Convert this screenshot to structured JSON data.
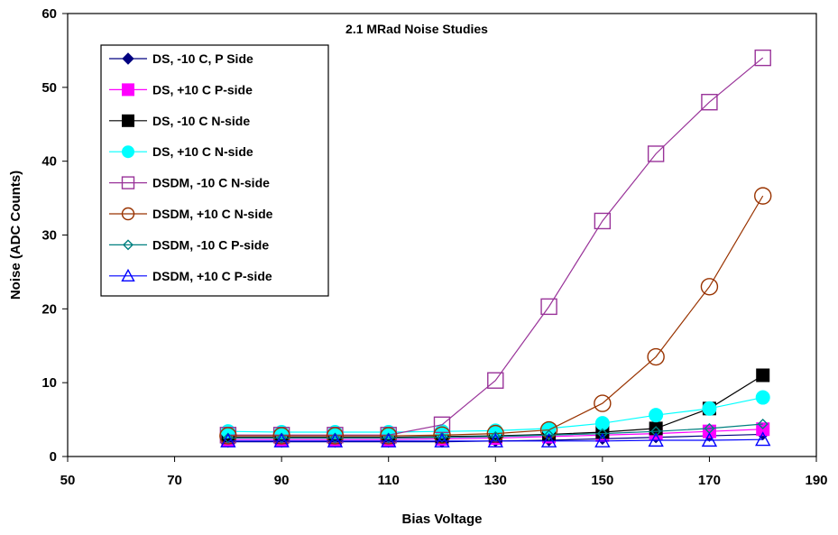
{
  "chart_data": {
    "type": "line",
    "title": "2.1 MRad Noise Studies",
    "xlabel": "Bias Voltage",
    "ylabel": "Noise (ADC Counts)",
    "xlim": [
      50,
      190
    ],
    "ylim": [
      0,
      60
    ],
    "xticks": [
      50,
      70,
      90,
      110,
      130,
      150,
      170,
      190
    ],
    "yticks": [
      0,
      10,
      20,
      30,
      40,
      50,
      60
    ],
    "grid": false,
    "legend_position": "top-left",
    "x": [
      80,
      90,
      100,
      110,
      120,
      130,
      140,
      150,
      160,
      170,
      180
    ],
    "series": [
      {
        "name": "DS, -10 C, P Side",
        "color": "#000080",
        "marker": "diamond-filled",
        "values": [
          2.0,
          2.0,
          2.0,
          2.0,
          2.0,
          2.1,
          2.2,
          2.4,
          2.6,
          2.8,
          3.0
        ]
      },
      {
        "name": "DS, +10 C P-side",
        "color": "#ff00ff",
        "marker": "square-filled",
        "values": [
          2.3,
          2.3,
          2.3,
          2.3,
          2.4,
          2.5,
          2.7,
          2.9,
          3.1,
          3.4,
          3.7
        ]
      },
      {
        "name": "DS, -10 C  N-side",
        "color": "#000000",
        "marker": "square-filled",
        "values": [
          2.6,
          2.6,
          2.6,
          2.6,
          2.7,
          2.8,
          3.0,
          3.3,
          3.8,
          6.5,
          11.0
        ]
      },
      {
        "name": "DS, +10 C  N-side",
        "color": "#00ffff",
        "marker": "circle-filled",
        "values": [
          3.4,
          3.3,
          3.3,
          3.3,
          3.4,
          3.5,
          3.8,
          4.5,
          5.6,
          6.5,
          8.0
        ]
      },
      {
        "name": "DSDM,  -10 C  N-side",
        "color": "#993399",
        "marker": "square-open",
        "values": [
          2.9,
          2.9,
          2.9,
          2.9,
          4.3,
          10.3,
          20.3,
          31.9,
          41.0,
          48.0,
          54.0
        ]
      },
      {
        "name": "DSDM, +10 C  N-side",
        "color": "#993300",
        "marker": "circle-open",
        "values": [
          2.8,
          2.8,
          2.8,
          2.8,
          2.9,
          3.1,
          3.6,
          7.2,
          13.5,
          23.0,
          35.3
        ]
      },
      {
        "name": "DSDM, -10 C P-side",
        "color": "#008080",
        "marker": "diamond-open",
        "values": [
          2.5,
          2.5,
          2.5,
          2.5,
          2.6,
          2.7,
          2.9,
          3.1,
          3.4,
          3.8,
          4.4
        ]
      },
      {
        "name": "DSDM, +10 C  P-side",
        "color": "#0000ff",
        "marker": "triangle-open",
        "values": [
          2.1,
          2.1,
          2.1,
          2.1,
          2.1,
          2.1,
          2.1,
          2.1,
          2.2,
          2.2,
          2.3
        ]
      }
    ]
  }
}
